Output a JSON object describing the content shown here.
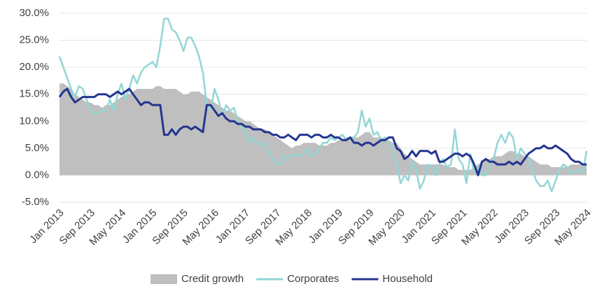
{
  "chart_data": {
    "type": "line",
    "categories": [
      "Jan 2013",
      null,
      null,
      null,
      null,
      null,
      null,
      null,
      "Sep 2013",
      null,
      null,
      null,
      null,
      null,
      null,
      null,
      "May 2014",
      null,
      null,
      null,
      null,
      null,
      null,
      null,
      "Jan 2015",
      null,
      null,
      null,
      null,
      null,
      null,
      null,
      "Sep 2015",
      null,
      null,
      null,
      null,
      null,
      null,
      null,
      "May 2016",
      null,
      null,
      null,
      null,
      null,
      null,
      null,
      "Jan 2017",
      null,
      null,
      null,
      null,
      null,
      null,
      null,
      "Sep 2017",
      null,
      null,
      null,
      null,
      null,
      null,
      null,
      "May 2018",
      null,
      null,
      null,
      null,
      null,
      null,
      null,
      "Jan 2019",
      null,
      null,
      null,
      null,
      null,
      null,
      null,
      "Sep 2019",
      null,
      null,
      null,
      null,
      null,
      null,
      null,
      "May 2020",
      null,
      null,
      null,
      null,
      null,
      null,
      null,
      "Jan 2021",
      null,
      null,
      null,
      null,
      null,
      null,
      null,
      "Sep 2021",
      null,
      null,
      null,
      null,
      null,
      null,
      null,
      "May 2022",
      null,
      null,
      null,
      null,
      null,
      null,
      null,
      "Jan 2023",
      null,
      null,
      null,
      null,
      null,
      null,
      null,
      "Sep 2023",
      null,
      null,
      null,
      null,
      null,
      null,
      null,
      "May 2024"
    ],
    "series": [
      {
        "name": "Credit growth",
        "type": "area",
        "color": "#bfbfbf",
        "values": [
          17,
          17,
          16.5,
          16,
          15,
          14.5,
          14,
          13.5,
          13.5,
          13,
          13,
          12.5,
          13,
          13,
          13.5,
          14,
          14.5,
          15,
          15,
          15.5,
          16,
          16,
          16,
          16,
          16,
          16.5,
          16.5,
          16,
          16,
          16,
          16,
          15.5,
          15,
          15,
          15.5,
          15.5,
          15.5,
          15,
          14.5,
          14,
          13.5,
          13,
          12.5,
          12,
          12,
          11.5,
          11,
          10.5,
          10,
          10,
          9.5,
          9,
          8.5,
          8.5,
          8,
          7.5,
          7,
          6.5,
          6,
          5.5,
          5,
          5.5,
          5.5,
          6,
          6,
          6,
          6,
          5.5,
          5.5,
          5.5,
          6,
          6,
          6.5,
          6.5,
          7,
          7,
          7,
          7,
          7.5,
          8,
          8,
          7,
          7,
          7,
          6.5,
          6.5,
          6,
          6,
          5,
          4,
          3.5,
          3,
          2.5,
          2,
          2,
          2,
          2,
          2,
          2,
          2,
          1.5,
          1.5,
          1.5,
          1,
          1,
          1,
          1,
          1.5,
          2,
          2.5,
          3,
          3,
          3.5,
          3.5,
          3.5,
          4,
          4.5,
          4.5,
          4,
          4,
          3.5,
          3.5,
          3,
          2.5,
          2,
          2,
          2,
          1.5,
          1.5,
          1.5,
          1.5,
          1.5,
          2,
          2,
          2,
          2,
          2
        ]
      },
      {
        "name": "Corporates",
        "type": "line",
        "color": "#93d6d6",
        "values": [
          22,
          20,
          18,
          16,
          14.5,
          16.5,
          16,
          14,
          12,
          11.5,
          11.5,
          12,
          12,
          14,
          12,
          15,
          17,
          14,
          16,
          18.5,
          17,
          19,
          20,
          20.5,
          21,
          20,
          24,
          29,
          29,
          27,
          26.5,
          25,
          23,
          25.5,
          25.5,
          24,
          22,
          19,
          13,
          12,
          16,
          14,
          11,
          13,
          12,
          12.5,
          10,
          9,
          8,
          6,
          7,
          6,
          5.5,
          6,
          4.5,
          3,
          2,
          2,
          3.5,
          3.5,
          3.5,
          4,
          3.5,
          4,
          5,
          3.5,
          4,
          5,
          6,
          6,
          7,
          6.5,
          7,
          7.5,
          6.5,
          7,
          7,
          8,
          12,
          9,
          10.5,
          7.5,
          8,
          6.5,
          7,
          6,
          5,
          2,
          -1.5,
          0,
          -1,
          2.5,
          1,
          -2.5,
          -1,
          2,
          1.5,
          0,
          2,
          3,
          1.5,
          2,
          8.5,
          3,
          2,
          -1.5,
          4,
          0.5,
          1.5,
          0,
          0,
          2,
          3,
          6,
          7.5,
          6,
          8,
          7,
          3,
          5,
          4,
          3,
          1,
          -1,
          -2,
          -2,
          -1,
          -3,
          -1,
          1,
          2,
          1.5,
          0.5,
          0.5,
          1,
          0.5,
          4.5
        ]
      },
      {
        "name": "Household",
        "type": "line",
        "color": "#24358f",
        "values": [
          14.5,
          15.5,
          16,
          14.5,
          13.5,
          14,
          14.5,
          14.5,
          14.5,
          14.5,
          15,
          15,
          15,
          14.5,
          15,
          15.5,
          15,
          15.5,
          16,
          15,
          14,
          13,
          13.5,
          13.5,
          13,
          13,
          13,
          7.5,
          7.5,
          8.5,
          7.5,
          8.5,
          9,
          9,
          8.5,
          9,
          8.5,
          8,
          13,
          13,
          12,
          11,
          11.5,
          10.5,
          10,
          10,
          9.5,
          9.5,
          9,
          9,
          8.5,
          8.5,
          8.5,
          8,
          8,
          7.5,
          7.5,
          7,
          7,
          7.5,
          7,
          6.5,
          7.5,
          7.5,
          7.5,
          7,
          7.5,
          7.5,
          7,
          7,
          7.5,
          7,
          7,
          6.5,
          6.5,
          7,
          6,
          6,
          5.5,
          6,
          6,
          5.5,
          6,
          6.5,
          6.5,
          7,
          7,
          5,
          4.5,
          3,
          3.5,
          4.5,
          3.5,
          4.5,
          4.5,
          4.5,
          4,
          4.5,
          2.5,
          2.5,
          3,
          3.5,
          4,
          4,
          3.5,
          4,
          3.5,
          2,
          0,
          2.5,
          3,
          2.5,
          2.5,
          2,
          2,
          2,
          2.5,
          2,
          2.5,
          2,
          3,
          4,
          4.5,
          5,
          5,
          5.5,
          5,
          5,
          5.5,
          5,
          4.5,
          4,
          3,
          2.5,
          2.5,
          2,
          2
        ]
      }
    ],
    "ylim": [
      -5,
      30
    ],
    "yticks": [
      {
        "value": -5,
        "label": "-5.0%"
      },
      {
        "value": 0,
        "label": "0.0%"
      },
      {
        "value": 5,
        "label": "5.0%"
      },
      {
        "value": 10,
        "label": "10.0%"
      },
      {
        "value": 15,
        "label": "15.0%"
      },
      {
        "value": 20,
        "label": "20.0%"
      },
      {
        "value": 25,
        "label": "25.0%"
      },
      {
        "value": 30,
        "label": "30.0%"
      }
    ],
    "grid": true,
    "legend": "bottom"
  }
}
